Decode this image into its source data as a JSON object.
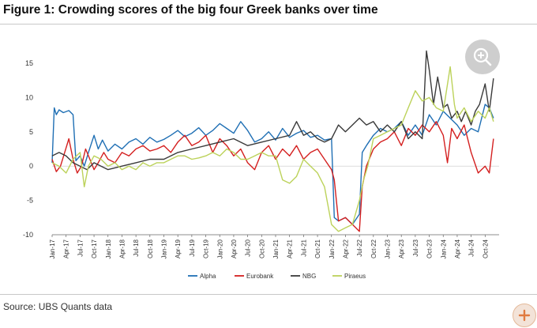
{
  "figure": {
    "title": "Figure 1: Crowding scores of the big four Greek banks over time",
    "source": "Source: UBS Quants data"
  },
  "controls": {
    "zoom_icon": "zoom-in-icon",
    "plus_icon": "plus-icon"
  },
  "chart_data": {
    "type": "line",
    "title": "Crowding scores of the big four Greek banks over time",
    "xlabel": "",
    "ylabel": "",
    "ylim": [
      -10,
      18
    ],
    "yticks": [
      -10,
      -5,
      0,
      5,
      10,
      15
    ],
    "grid": false,
    "legend_position": "bottom-center",
    "x_labels": [
      "Jan-17",
      "Apr-17",
      "Jul-17",
      "Oct-17",
      "Jan-18",
      "Apr-18",
      "Jul-18",
      "Oct-18",
      "Jan-19",
      "Apr-19",
      "Jul-19",
      "Oct-19",
      "Jan-20",
      "Apr-20",
      "Jul-20",
      "Oct-20",
      "Jan-21",
      "Apr-21",
      "Jul-21",
      "Oct-21",
      "Jan-22",
      "Apr-22",
      "Jul-22",
      "Oct-22",
      "Jan-23",
      "Apr-23",
      "Jul-23",
      "Oct-23",
      "Jan-24",
      "Apr-24",
      "Jul-24",
      "Oct-24"
    ],
    "x_range": [
      0,
      32
    ],
    "series": [
      {
        "name": "Alpha",
        "color": "#1f6fb4",
        "points": [
          [
            0,
            0.5
          ],
          [
            0.15,
            8.5
          ],
          [
            0.3,
            7.5
          ],
          [
            0.5,
            8.2
          ],
          [
            0.8,
            7.8
          ],
          [
            1.2,
            8.1
          ],
          [
            1.5,
            7.5
          ],
          [
            1.7,
            0.8
          ],
          [
            2,
            1.5
          ],
          [
            2.3,
            0
          ],
          [
            2.6,
            2
          ],
          [
            3,
            4.5
          ],
          [
            3.3,
            2.5
          ],
          [
            3.6,
            3.8
          ],
          [
            4,
            2.2
          ],
          [
            4.5,
            3.2
          ],
          [
            5,
            2.5
          ],
          [
            5.5,
            3.5
          ],
          [
            6,
            4
          ],
          [
            6.5,
            3.2
          ],
          [
            7,
            4.2
          ],
          [
            7.5,
            3.5
          ],
          [
            8,
            3.9
          ],
          [
            8.5,
            4.5
          ],
          [
            9,
            5.2
          ],
          [
            9.5,
            4.3
          ],
          [
            10,
            4.8
          ],
          [
            10.5,
            5.6
          ],
          [
            11,
            4.5
          ],
          [
            11.5,
            5.2
          ],
          [
            12,
            6.2
          ],
          [
            12.5,
            5.5
          ],
          [
            13,
            4.8
          ],
          [
            13.5,
            6.5
          ],
          [
            14,
            5.2
          ],
          [
            14.5,
            3.5
          ],
          [
            15,
            4
          ],
          [
            15.5,
            5
          ],
          [
            16,
            3.8
          ],
          [
            16.5,
            5.5
          ],
          [
            17,
            4.2
          ],
          [
            17.5,
            4.8
          ],
          [
            18,
            5.2
          ],
          [
            18.5,
            4.2
          ],
          [
            19,
            4.5
          ],
          [
            19.5,
            3.8
          ],
          [
            20,
            4
          ],
          [
            20.2,
            -7.5
          ],
          [
            20.5,
            -8
          ],
          [
            21,
            -7.5
          ],
          [
            21.5,
            -8.5
          ],
          [
            22,
            -7
          ],
          [
            22.2,
            2
          ],
          [
            22.5,
            3
          ],
          [
            23,
            4.5
          ],
          [
            23.5,
            5.5
          ],
          [
            24,
            5
          ],
          [
            24.5,
            5.5
          ],
          [
            25,
            6.5
          ],
          [
            25.5,
            4.5
          ],
          [
            26,
            6
          ],
          [
            26.5,
            4.5
          ],
          [
            27,
            7.5
          ],
          [
            27.5,
            6
          ],
          [
            28,
            8
          ],
          [
            28.5,
            7
          ],
          [
            29,
            6
          ],
          [
            29.5,
            4.5
          ],
          [
            30,
            5.5
          ],
          [
            30.5,
            5
          ],
          [
            31,
            9
          ],
          [
            31.3,
            8.5
          ],
          [
            31.6,
            7
          ]
        ]
      },
      {
        "name": "Eurobank",
        "color": "#d42020",
        "points": [
          [
            0,
            1
          ],
          [
            0.3,
            -0.8
          ],
          [
            0.6,
            0
          ],
          [
            0.9,
            2
          ],
          [
            1.2,
            4
          ],
          [
            1.5,
            1
          ],
          [
            1.8,
            -1
          ],
          [
            2.1,
            0
          ],
          [
            2.4,
            2.5
          ],
          [
            2.7,
            1
          ],
          [
            3,
            -0.5
          ],
          [
            3.3,
            0.5
          ],
          [
            3.7,
            2
          ],
          [
            4,
            1
          ],
          [
            4.5,
            0.5
          ],
          [
            5,
            2
          ],
          [
            5.5,
            1.5
          ],
          [
            6,
            2.5
          ],
          [
            6.5,
            3
          ],
          [
            7,
            2.2
          ],
          [
            7.5,
            2.5
          ],
          [
            8,
            3
          ],
          [
            8.5,
            2
          ],
          [
            9,
            3.5
          ],
          [
            9.5,
            4.5
          ],
          [
            10,
            3
          ],
          [
            10.5,
            3.5
          ],
          [
            11,
            4.5
          ],
          [
            11.5,
            2
          ],
          [
            12,
            4
          ],
          [
            12.5,
            3
          ],
          [
            13,
            1.5
          ],
          [
            13.5,
            2.5
          ],
          [
            14,
            0.5
          ],
          [
            14.5,
            -0.5
          ],
          [
            15,
            2
          ],
          [
            15.5,
            3
          ],
          [
            16,
            1
          ],
          [
            16.5,
            2.5
          ],
          [
            17,
            1.5
          ],
          [
            17.5,
            3
          ],
          [
            18,
            1
          ],
          [
            18.5,
            2
          ],
          [
            19,
            2.5
          ],
          [
            19.5,
            1
          ],
          [
            20,
            -0.5
          ],
          [
            20.2,
            -2
          ],
          [
            20.5,
            -8
          ],
          [
            21,
            -7.5
          ],
          [
            21.5,
            -8.5
          ],
          [
            22,
            -9.5
          ],
          [
            22.2,
            -3
          ],
          [
            22.5,
            0
          ],
          [
            23,
            2.5
          ],
          [
            23.5,
            3.5
          ],
          [
            24,
            4
          ],
          [
            24.5,
            5
          ],
          [
            25,
            3
          ],
          [
            25.5,
            5.5
          ],
          [
            26,
            4.5
          ],
          [
            26.5,
            6
          ],
          [
            27,
            5
          ],
          [
            27.5,
            6.5
          ],
          [
            28,
            4.5
          ],
          [
            28.3,
            0.5
          ],
          [
            28.6,
            5.5
          ],
          [
            29,
            4
          ],
          [
            29.5,
            6
          ],
          [
            30,
            2
          ],
          [
            30.5,
            -1
          ],
          [
            31,
            0
          ],
          [
            31.3,
            -1
          ],
          [
            31.6,
            4
          ]
        ]
      },
      {
        "name": "NBG",
        "color": "#3a3a3a",
        "points": [
          [
            0,
            1.5
          ],
          [
            0.5,
            2
          ],
          [
            1,
            1.5
          ],
          [
            1.5,
            0.5
          ],
          [
            2,
            0
          ],
          [
            2.5,
            -0.5
          ],
          [
            3,
            0.5
          ],
          [
            3.5,
            0
          ],
          [
            4,
            -0.5
          ],
          [
            5,
            0
          ],
          [
            6,
            0.5
          ],
          [
            7,
            1
          ],
          [
            8,
            1
          ],
          [
            9,
            2
          ],
          [
            10,
            2.5
          ],
          [
            11,
            3
          ],
          [
            12,
            3.5
          ],
          [
            13,
            4
          ],
          [
            14,
            3
          ],
          [
            15,
            3.5
          ],
          [
            16,
            4
          ],
          [
            17,
            4.5
          ],
          [
            17.5,
            6.5
          ],
          [
            18,
            4.5
          ],
          [
            18.5,
            5
          ],
          [
            19,
            4
          ],
          [
            19.5,
            3.5
          ],
          [
            20,
            4
          ],
          [
            20.5,
            6
          ],
          [
            21,
            5
          ],
          [
            21.5,
            6
          ],
          [
            22,
            7
          ],
          [
            22.5,
            6
          ],
          [
            23,
            6.5
          ],
          [
            23.5,
            5
          ],
          [
            24,
            6
          ],
          [
            24.5,
            5
          ],
          [
            25,
            6.5
          ],
          [
            25.5,
            4
          ],
          [
            26,
            5
          ],
          [
            26.5,
            4
          ],
          [
            26.8,
            16.8
          ],
          [
            27,
            14
          ],
          [
            27.3,
            9
          ],
          [
            27.6,
            13
          ],
          [
            28,
            8.5
          ],
          [
            28.3,
            9
          ],
          [
            28.6,
            7
          ],
          [
            29,
            8
          ],
          [
            29.3,
            6.5
          ],
          [
            29.6,
            8
          ],
          [
            30,
            6
          ],
          [
            30.3,
            8
          ],
          [
            30.6,
            9
          ],
          [
            31,
            12
          ],
          [
            31.3,
            8
          ],
          [
            31.6,
            12.8
          ]
        ]
      },
      {
        "name": "Piraeus",
        "color": "#bcd25a",
        "points": [
          [
            0,
            0.5
          ],
          [
            0.5,
            0
          ],
          [
            1,
            -1
          ],
          [
            1.5,
            1
          ],
          [
            2,
            2
          ],
          [
            2.3,
            -3
          ],
          [
            2.6,
            0
          ],
          [
            3,
            1.5
          ],
          [
            3.5,
            1
          ],
          [
            4,
            0
          ],
          [
            4.5,
            0.5
          ],
          [
            5,
            -0.5
          ],
          [
            5.5,
            0
          ],
          [
            6,
            -0.5
          ],
          [
            6.5,
            0.5
          ],
          [
            7,
            0
          ],
          [
            7.5,
            0.5
          ],
          [
            8,
            0.5
          ],
          [
            8.5,
            1
          ],
          [
            9,
            1.5
          ],
          [
            9.5,
            1.5
          ],
          [
            10,
            1
          ],
          [
            10.5,
            1.2
          ],
          [
            11,
            1.5
          ],
          [
            11.5,
            2
          ],
          [
            12,
            1.5
          ],
          [
            12.5,
            2.5
          ],
          [
            13,
            2
          ],
          [
            13.5,
            1
          ],
          [
            14,
            1
          ],
          [
            14.5,
            1.5
          ],
          [
            15,
            2
          ],
          [
            15.5,
            1.5
          ],
          [
            16,
            1.5
          ],
          [
            16.5,
            -2
          ],
          [
            17,
            -2.5
          ],
          [
            17.5,
            -1.5
          ],
          [
            18,
            1
          ],
          [
            18.5,
            0
          ],
          [
            19,
            -1
          ],
          [
            19.5,
            -3
          ],
          [
            20,
            -8.5
          ],
          [
            20.5,
            -9.5
          ],
          [
            21,
            -9
          ],
          [
            21.5,
            -8.5
          ],
          [
            22,
            -5
          ],
          [
            22.3,
            -2
          ],
          [
            22.6,
            0
          ],
          [
            23,
            4
          ],
          [
            23.5,
            4.5
          ],
          [
            24,
            5
          ],
          [
            24.5,
            5.5
          ],
          [
            25,
            6
          ],
          [
            25.5,
            8.5
          ],
          [
            26,
            11
          ],
          [
            26.5,
            9.5
          ],
          [
            27,
            10
          ],
          [
            27.5,
            8.5
          ],
          [
            28,
            8
          ],
          [
            28.5,
            14.5
          ],
          [
            28.8,
            9
          ],
          [
            29,
            7
          ],
          [
            29.5,
            8.5
          ],
          [
            30,
            6.5
          ],
          [
            30.5,
            8
          ],
          [
            31,
            7
          ],
          [
            31.3,
            8.5
          ],
          [
            31.6,
            6.5
          ]
        ]
      }
    ]
  }
}
